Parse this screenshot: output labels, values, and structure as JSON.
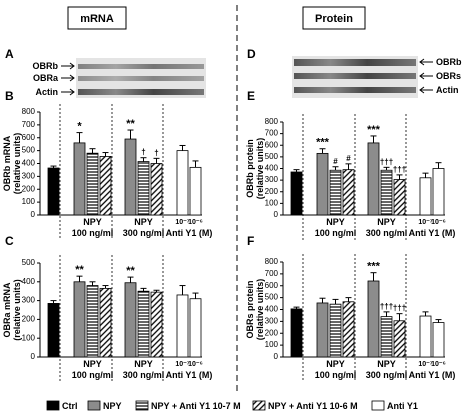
{
  "headers": {
    "left": "mRNA",
    "right": "Protein"
  },
  "blots": [
    {
      "panel": "A",
      "labels": [
        "OBRb",
        "OBRa",
        "Actin"
      ]
    },
    {
      "panel": "D",
      "labels": [
        "OBRb",
        "OBRs",
        "Actin"
      ]
    }
  ],
  "legend": [
    {
      "name": "Ctrl",
      "color": "#000000",
      "pattern": "solid"
    },
    {
      "name": "NPY",
      "color": "#8c8c8c",
      "pattern": "solid"
    },
    {
      "name": "NPY + Anti Y1 10-7 M",
      "color": "#000000",
      "pattern": "horizontal"
    },
    {
      "name": "NPY + Anti Y1 10-6 M",
      "color": "#000000",
      "pattern": "diagonal"
    },
    {
      "name": "Anti Y1",
      "color": "#ffffff",
      "pattern": "solid"
    }
  ],
  "chart_data": [
    {
      "type": "bar",
      "panel": "B",
      "ylabel": [
        "OBRb mRNA",
        "(relative units)"
      ],
      "ylim": [
        0,
        800
      ],
      "yticks": [
        0,
        100,
        200,
        300,
        400,
        500,
        600,
        700,
        800
      ],
      "categories": [
        null,
        null,
        null,
        null,
        null,
        null,
        null,
        "10⁻⁷",
        "10⁻⁶"
      ],
      "groups": [
        {
          "label": "NPY",
          "sublabel": "100 ng/ml"
        },
        {
          "label": "NPY",
          "sublabel": "300 ng/ml"
        },
        {
          "label": "Anti Y1 (M)"
        }
      ],
      "series": [
        {
          "values": [
            365,
            null,
            null,
            null,
            null,
            null,
            null,
            null,
            null
          ],
          "errors": [
            15,
            null,
            null,
            null,
            null,
            null,
            null,
            null,
            null
          ]
        },
        {
          "values": [
            null,
            560,
            null,
            null,
            590,
            null,
            null,
            null,
            null
          ],
          "errors": [
            null,
            80,
            null,
            null,
            70,
            null,
            null,
            null,
            null
          ]
        },
        {
          "values": [
            null,
            null,
            480,
            null,
            null,
            415,
            null,
            null,
            null
          ],
          "errors": [
            null,
            null,
            35,
            null,
            null,
            30,
            null,
            null,
            null
          ]
        },
        {
          "values": [
            null,
            null,
            null,
            455,
            null,
            null,
            400,
            null,
            null
          ],
          "errors": [
            null,
            null,
            null,
            30,
            null,
            null,
            40,
            null,
            null
          ]
        },
        {
          "values": [
            null,
            null,
            null,
            null,
            null,
            null,
            null,
            500,
            370
          ],
          "errors": [
            null,
            null,
            null,
            null,
            null,
            null,
            null,
            40,
            50
          ]
        }
      ],
      "significance": [
        null,
        "*",
        null,
        null,
        "**",
        "†",
        "†",
        null,
        null
      ]
    },
    {
      "type": "bar",
      "panel": "C",
      "ylabel": [
        "OBRa mRNA",
        "(relative units)"
      ],
      "ylim": [
        0,
        500
      ],
      "yticks": [
        0,
        100,
        200,
        300,
        400,
        500
      ],
      "categories": [
        null,
        null,
        null,
        null,
        null,
        null,
        null,
        "10⁻⁷",
        "10⁻⁶"
      ],
      "groups": [
        {
          "label": "NPY",
          "sublabel": "100 ng/ml"
        },
        {
          "label": "NPY",
          "sublabel": "300 ng/ml"
        },
        {
          "label": "Anti Y1 (M)"
        }
      ],
      "series": [
        {
          "values": [
            285,
            null,
            null,
            null,
            null,
            null,
            null,
            null,
            null
          ],
          "errors": [
            15,
            null,
            null,
            null,
            null,
            null,
            null,
            null,
            null
          ]
        },
        {
          "values": [
            null,
            400,
            null,
            null,
            395,
            null,
            null,
            null,
            null
          ],
          "errors": [
            null,
            30,
            null,
            null,
            30,
            null,
            null,
            null,
            null
          ]
        },
        {
          "values": [
            null,
            null,
            380,
            null,
            null,
            350,
            null,
            null,
            null
          ],
          "errors": [
            null,
            null,
            20,
            null,
            null,
            15,
            null,
            null,
            null
          ]
        },
        {
          "values": [
            null,
            null,
            null,
            365,
            null,
            null,
            345,
            null,
            null
          ],
          "errors": [
            null,
            null,
            null,
            15,
            null,
            null,
            10,
            null,
            null
          ]
        },
        {
          "values": [
            null,
            null,
            null,
            null,
            null,
            null,
            null,
            330,
            310
          ],
          "errors": [
            null,
            null,
            null,
            null,
            null,
            null,
            null,
            50,
            30
          ]
        }
      ],
      "significance": [
        null,
        "**",
        null,
        null,
        "**",
        null,
        null,
        null,
        null
      ]
    },
    {
      "type": "bar",
      "panel": "E",
      "ylabel": [
        "OBRb protein",
        "(relative units)"
      ],
      "ylim": [
        0,
        800
      ],
      "yticks": [
        0,
        100,
        200,
        300,
        400,
        500,
        600,
        700,
        800
      ],
      "categories": [
        null,
        null,
        null,
        null,
        null,
        null,
        null,
        "10⁻⁷",
        "10⁻⁶"
      ],
      "groups": [
        {
          "label": "NPY",
          "sublabel": "100 ng/ml"
        },
        {
          "label": "NPY",
          "sublabel": "300 ng/ml"
        },
        {
          "label": "Anti Y1 (M)"
        }
      ],
      "series": [
        {
          "values": [
            370,
            null,
            null,
            null,
            null,
            null,
            null,
            null,
            null
          ],
          "errors": [
            20,
            null,
            null,
            null,
            null,
            null,
            null,
            null,
            null
          ]
        },
        {
          "values": [
            null,
            530,
            null,
            null,
            620,
            null,
            null,
            null,
            null
          ],
          "errors": [
            null,
            40,
            null,
            null,
            60,
            null,
            null,
            null,
            null
          ]
        },
        {
          "values": [
            null,
            null,
            385,
            null,
            null,
            385,
            null,
            null,
            null
          ],
          "errors": [
            null,
            null,
            30,
            null,
            null,
            25,
            null,
            null,
            null
          ]
        },
        {
          "values": [
            null,
            null,
            null,
            390,
            null,
            null,
            305,
            null,
            null
          ],
          "errors": [
            null,
            null,
            null,
            50,
            null,
            null,
            40,
            null,
            null
          ]
        },
        {
          "values": [
            null,
            null,
            null,
            null,
            null,
            null,
            null,
            320,
            400
          ],
          "errors": [
            null,
            null,
            null,
            null,
            null,
            null,
            null,
            40,
            50
          ]
        }
      ],
      "significance": [
        null,
        "***",
        "#",
        "#",
        "***",
        "†††",
        "†††",
        null,
        null
      ]
    },
    {
      "type": "bar",
      "panel": "F",
      "ylabel": [
        "OBRs protein",
        "(relative units)"
      ],
      "ylim": [
        0,
        800
      ],
      "yticks": [
        0,
        100,
        200,
        300,
        400,
        500,
        600,
        700,
        800
      ],
      "categories": [
        null,
        null,
        null,
        null,
        null,
        null,
        null,
        "10⁻⁷",
        "10⁻⁶"
      ],
      "groups": [
        {
          "label": "NPY",
          "sublabel": "100 ng/ml"
        },
        {
          "label": "NPY",
          "sublabel": "300 ng/ml"
        },
        {
          "label": "Anti Y1 (M)"
        }
      ],
      "series": [
        {
          "values": [
            405,
            null,
            null,
            null,
            null,
            null,
            null,
            null,
            null
          ],
          "errors": [
            15,
            null,
            null,
            null,
            null,
            null,
            null,
            null,
            null
          ]
        },
        {
          "values": [
            null,
            455,
            null,
            null,
            640,
            null,
            null,
            null,
            null
          ],
          "errors": [
            null,
            40,
            null,
            null,
            70,
            null,
            null,
            null,
            null
          ]
        },
        {
          "values": [
            null,
            null,
            445,
            null,
            null,
            340,
            null,
            null,
            null
          ],
          "errors": [
            null,
            null,
            40,
            null,
            null,
            40,
            null,
            null,
            null
          ]
        },
        {
          "values": [
            null,
            null,
            null,
            465,
            null,
            null,
            305,
            null,
            null
          ],
          "errors": [
            null,
            null,
            null,
            35,
            null,
            null,
            60,
            null,
            null
          ]
        },
        {
          "values": [
            null,
            null,
            null,
            null,
            null,
            null,
            null,
            345,
            290
          ],
          "errors": [
            null,
            null,
            null,
            null,
            null,
            null,
            null,
            35,
            25
          ]
        }
      ],
      "significance": [
        null,
        null,
        null,
        null,
        "***",
        "†††",
        "†††",
        null,
        null
      ]
    }
  ]
}
